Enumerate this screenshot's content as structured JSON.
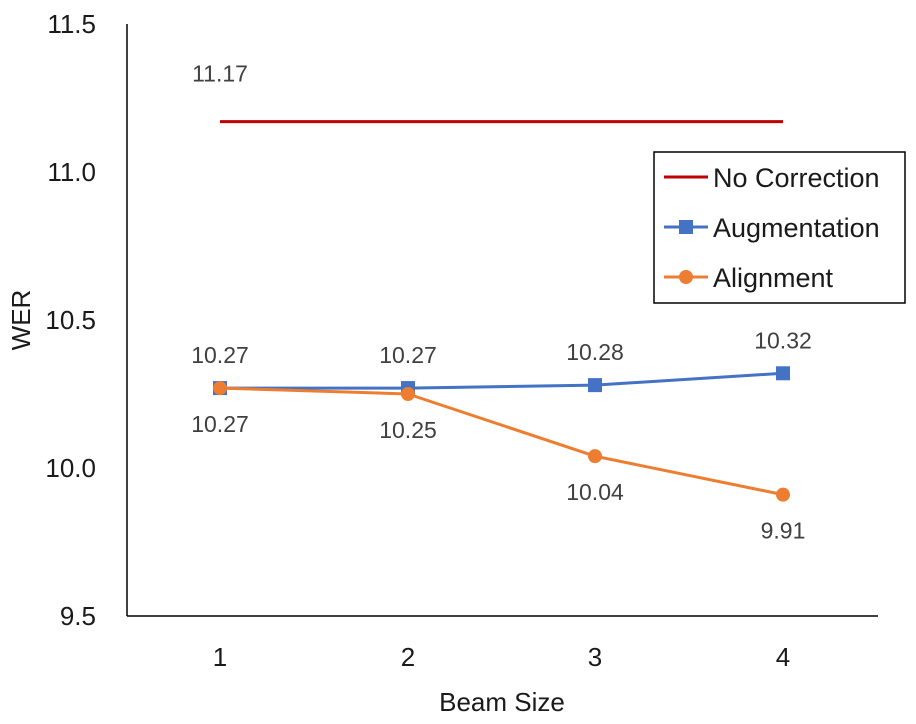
{
  "chart_data": {
    "type": "line",
    "xlabel": "Beam Size",
    "ylabel": "WER",
    "x": [
      1,
      2,
      3,
      4
    ],
    "x_tick_labels": [
      "1",
      "2",
      "3",
      "4"
    ],
    "ylim": [
      9.5,
      11.5
    ],
    "y_ticks": [
      9.5,
      10.0,
      10.5,
      11.0,
      11.5
    ],
    "y_tick_labels": [
      "9.5",
      "10.0",
      "10.5",
      "11.0",
      "11.5"
    ],
    "grid": false,
    "legend_position": "right",
    "series": [
      {
        "name": "No Correction",
        "values": [
          11.17,
          11.17,
          11.17,
          11.17
        ],
        "color": "#c00000",
        "marker": "none",
        "data_labels": [
          "11.17",
          "",
          "",
          ""
        ]
      },
      {
        "name": "Augmentation",
        "values": [
          10.27,
          10.27,
          10.28,
          10.32
        ],
        "color": "#4472c4",
        "marker": "square",
        "data_labels": [
          "10.27",
          "10.27",
          "10.28",
          "10.32"
        ]
      },
      {
        "name": "Alignment",
        "values": [
          10.27,
          10.25,
          10.04,
          9.91
        ],
        "color": "#ed7d31",
        "marker": "circle",
        "data_labels": [
          "10.27",
          "10.25",
          "10.04",
          "9.91"
        ]
      }
    ]
  }
}
